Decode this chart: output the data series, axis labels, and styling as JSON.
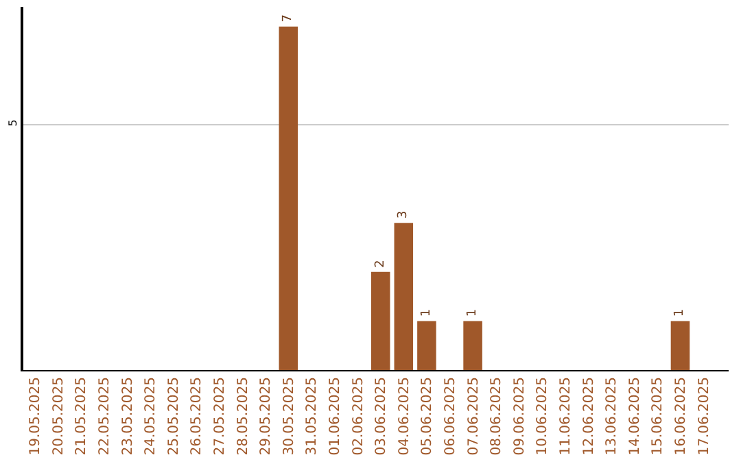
{
  "chart_data": {
    "type": "bar",
    "categories": [
      "19.05.2025",
      "20.05.2025",
      "21.05.2025",
      "22.05.2025",
      "23.05.2025",
      "24.05.2025",
      "25.05.2025",
      "26.05.2025",
      "27.05.2025",
      "28.05.2025",
      "29.05.2025",
      "30.05.2025",
      "31.05.2025",
      "01.06.2025",
      "02.06.2025",
      "03.06.2025",
      "04.06.2025",
      "05.06.2025",
      "06.06.2025",
      "07.06.2025",
      "08.06.2025",
      "09.06.2025",
      "10.06.2025",
      "11.06.2025",
      "12.06.2025",
      "13.06.2025",
      "14.06.2025",
      "15.06.2025",
      "16.06.2025",
      "17.06.2025"
    ],
    "values": [
      0,
      0,
      0,
      0,
      0,
      0,
      0,
      0,
      0,
      0,
      0,
      7,
      0,
      0,
      0,
      2,
      3,
      1,
      0,
      1,
      0,
      0,
      0,
      0,
      0,
      0,
      0,
      0,
      1,
      0
    ],
    "value_labels": [
      null,
      null,
      null,
      null,
      null,
      null,
      null,
      null,
      null,
      null,
      null,
      "7",
      null,
      null,
      null,
      "2",
      "3",
      "1",
      null,
      "1",
      null,
      null,
      null,
      null,
      null,
      null,
      null,
      null,
      "1",
      null
    ],
    "color": "#a0582a",
    "ylim": [
      0,
      7.4
    ],
    "yticks": [
      5
    ],
    "grid": "y",
    "legend": false
  }
}
